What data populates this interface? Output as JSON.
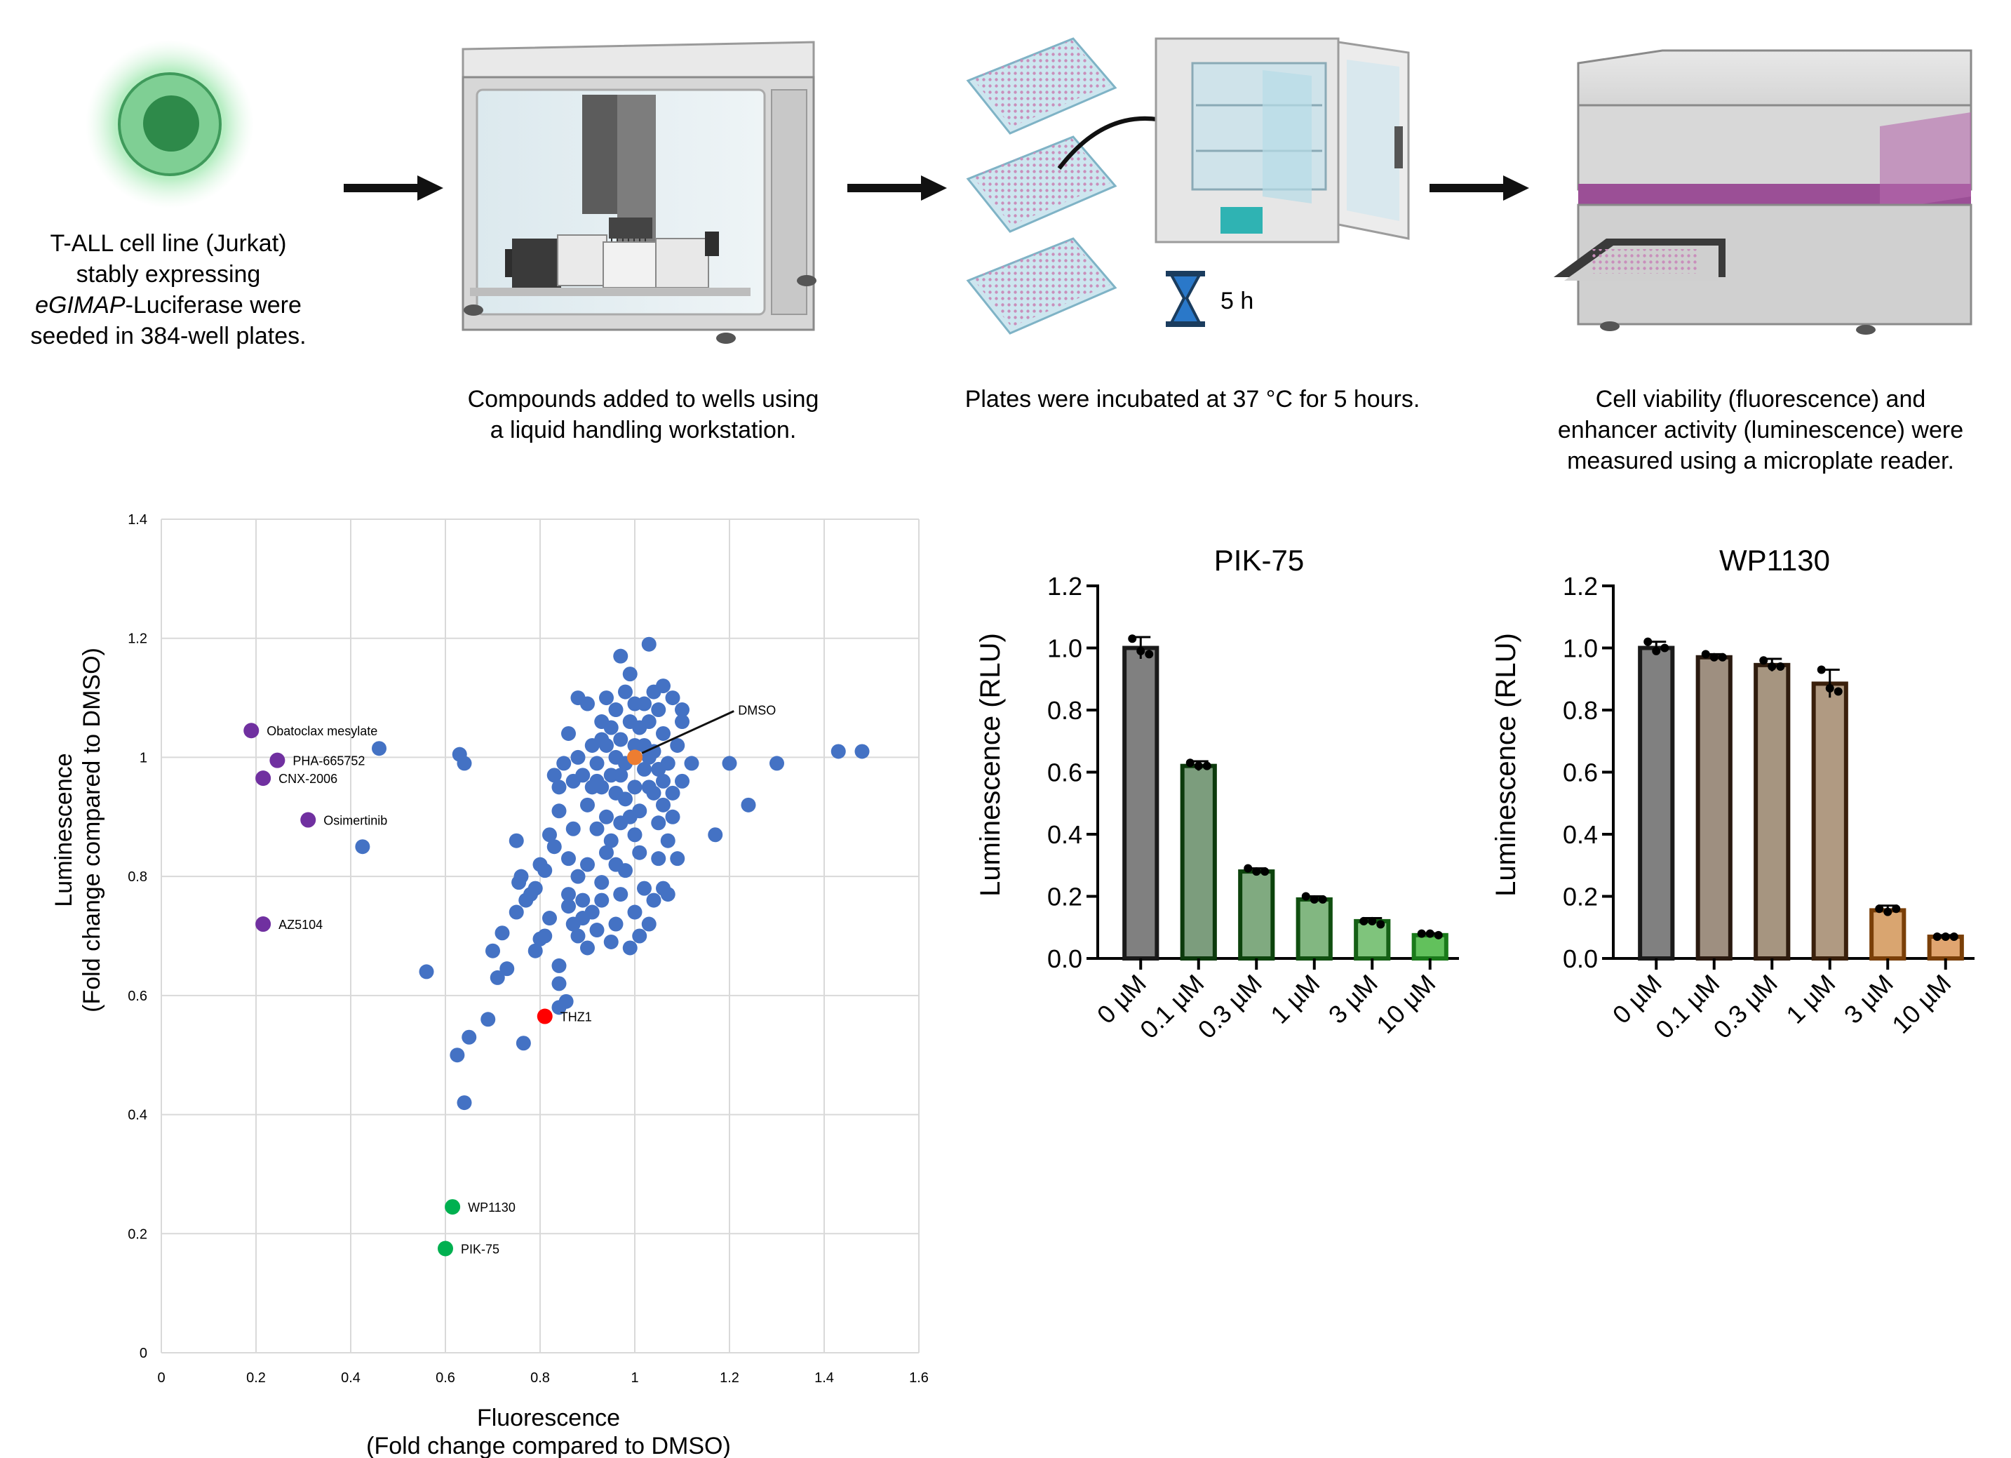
{
  "workflow": {
    "step1": {
      "line1": "T-ALL cell line (Jurkat)",
      "line2": "stably expressing",
      "line3_italic": "eGIMAP",
      "line3_rest": "-Luciferase were",
      "line4": "seeded in 384-well plates."
    },
    "step2": {
      "line1": "Compounds added to wells using",
      "line2": "a liquid handling workstation."
    },
    "step3": {
      "line1": "Plates were incubated at 37 °C for 5 hours.",
      "timer_label": "5 h"
    },
    "step4": {
      "line1": "Cell viability (fluorescence) and",
      "line2": "enhancer activity (luminescence) were",
      "line3": "measured using a microplate reader."
    }
  },
  "chart_data": [
    {
      "type": "scatter",
      "xlabel": "Fluorescence",
      "xlabel2": "(Fold change compared to DMSO)",
      "ylabel": "Luminescence",
      "ylabel2": "(Fold change compared to DMSO)",
      "xlim": [
        0,
        1.6
      ],
      "ylim": [
        0,
        1.4
      ],
      "xticks": [
        "0",
        "0.2",
        "0.4",
        "0.6",
        "0.8",
        "1",
        "1.2",
        "1.4",
        "1.6"
      ],
      "yticks": [
        "0",
        "0.2",
        "0.4",
        "0.6",
        "0.8",
        "1",
        "1.2",
        "1.4"
      ],
      "grid": true,
      "colors": {
        "screen": "#4472C4",
        "purple": "#7030A0",
        "green": "#00B050",
        "red": "#FF0000",
        "orange": "#ED7D31"
      },
      "labeled_points": [
        {
          "label": "Obatoclax mesylate",
          "x": 0.19,
          "y": 1.045,
          "color": "purple"
        },
        {
          "label": "PHA-665752",
          "x": 0.245,
          "y": 0.995,
          "color": "purple"
        },
        {
          "label": "CNX-2006",
          "x": 0.215,
          "y": 0.965,
          "color": "purple"
        },
        {
          "label": "Osimertinib",
          "x": 0.31,
          "y": 0.895,
          "color": "purple"
        },
        {
          "label": "AZ5104",
          "x": 0.215,
          "y": 0.72,
          "color": "purple"
        },
        {
          "label": "WP1130",
          "x": 0.615,
          "y": 0.245,
          "color": "green"
        },
        {
          "label": "PIK-75",
          "x": 0.6,
          "y": 0.175,
          "color": "green"
        },
        {
          "label": "THZ1",
          "x": 0.81,
          "y": 0.565,
          "color": "red"
        },
        {
          "label": "DMSO",
          "x": 1.0,
          "y": 1.0,
          "color": "orange",
          "label_x": 1.23,
          "label_y": 1.08
        }
      ],
      "screen_points": [
        [
          0.46,
          1.015
        ],
        [
          0.425,
          0.85
        ],
        [
          0.63,
          1.005
        ],
        [
          0.64,
          0.99
        ],
        [
          0.56,
          0.64
        ],
        [
          0.7,
          0.675
        ],
        [
          0.71,
          0.63
        ],
        [
          0.72,
          0.705
        ],
        [
          0.73,
          0.645
        ],
        [
          0.75,
          0.74
        ],
        [
          0.755,
          0.79
        ],
        [
          0.75,
          0.86
        ],
        [
          0.76,
          0.8
        ],
        [
          0.78,
          0.77
        ],
        [
          0.79,
          0.675
        ],
        [
          0.8,
          0.695
        ],
        [
          0.8,
          0.82
        ],
        [
          0.81,
          0.7
        ],
        [
          0.82,
          0.73
        ],
        [
          0.83,
          0.85
        ],
        [
          0.84,
          0.62
        ],
        [
          0.84,
          0.65
        ],
        [
          0.84,
          0.58
        ],
        [
          0.855,
          0.59
        ],
        [
          0.86,
          0.77
        ],
        [
          0.87,
          0.72
        ],
        [
          0.88,
          0.8
        ],
        [
          0.88,
          0.7
        ],
        [
          0.89,
          0.76
        ],
        [
          0.9,
          0.68
        ],
        [
          0.9,
          0.82
        ],
        [
          0.91,
          0.74
        ],
        [
          0.92,
          0.71
        ],
        [
          0.93,
          0.79
        ],
        [
          0.94,
          0.84
        ],
        [
          0.95,
          0.69
        ],
        [
          0.96,
          0.72
        ],
        [
          0.97,
          0.77
        ],
        [
          0.98,
          0.81
        ],
        [
          0.99,
          0.68
        ],
        [
          1.0,
          0.74
        ],
        [
          1.01,
          0.7
        ],
        [
          1.02,
          0.78
        ],
        [
          1.03,
          0.72
        ],
        [
          1.04,
          0.76
        ],
        [
          1.05,
          0.83
        ],
        [
          1.06,
          0.78
        ],
        [
          1.07,
          0.77
        ],
        [
          1.09,
          0.83
        ],
        [
          1.1,
          0.96
        ],
        [
          1.12,
          0.99
        ],
        [
          1.17,
          0.87
        ],
        [
          1.2,
          0.99
        ],
        [
          1.24,
          0.92
        ],
        [
          1.3,
          0.99
        ],
        [
          1.43,
          1.01
        ],
        [
          1.48,
          1.01
        ],
        [
          1.03,
          1.19
        ],
        [
          0.97,
          1.17
        ],
        [
          0.99,
          1.14
        ],
        [
          0.88,
          1.1
        ],
        [
          0.86,
          1.04
        ],
        [
          0.84,
          0.95
        ],
        [
          0.84,
          0.91
        ],
        [
          0.83,
          0.97
        ],
        [
          0.85,
          0.99
        ],
        [
          0.87,
          0.96
        ],
        [
          0.9,
          0.92
        ],
        [
          0.92,
          0.88
        ],
        [
          0.94,
          0.9
        ],
        [
          0.95,
          0.86
        ],
        [
          0.96,
          0.94
        ],
        [
          0.97,
          0.89
        ],
        [
          0.98,
          0.93
        ],
        [
          1.0,
          0.87
        ],
        [
          1.01,
          0.91
        ],
        [
          1.03,
          0.95
        ],
        [
          1.05,
          0.89
        ],
        [
          1.06,
          0.92
        ],
        [
          1.07,
          0.86
        ],
        [
          1.08,
          0.9
        ],
        [
          1.09,
          1.02
        ],
        [
          1.1,
          1.06
        ],
        [
          1.1,
          1.08
        ],
        [
          1.08,
          1.1
        ],
        [
          1.06,
          1.12
        ],
        [
          1.05,
          1.08
        ],
        [
          0.9,
          1.09
        ],
        [
          0.91,
          1.02
        ],
        [
          0.93,
          1.06
        ],
        [
          0.95,
          1.05
        ],
        [
          0.96,
          1.0
        ],
        [
          0.97,
          1.03
        ],
        [
          0.98,
          0.99
        ],
        [
          1.01,
          1.05
        ],
        [
          1.02,
          1.02
        ],
        [
          1.03,
          1.06
        ],
        [
          1.04,
          1.01
        ],
        [
          1.05,
          0.98
        ],
        [
          1.06,
          1.04
        ],
        [
          1.07,
          0.99
        ],
        [
          0.88,
          1.0
        ],
        [
          0.89,
          0.97
        ],
        [
          0.92,
          0.99
        ],
        [
          0.93,
          0.95
        ],
        [
          0.94,
          1.02
        ],
        [
          0.99,
          1.06
        ],
        [
          1.0,
          1.09
        ],
        [
          1.02,
          1.09
        ],
        [
          1.04,
          1.11
        ],
        [
          0.96,
          1.08
        ],
        [
          0.94,
          1.1
        ],
        [
          0.98,
          1.11
        ],
        [
          0.87,
          0.88
        ],
        [
          0.86,
          0.83
        ],
        [
          0.82,
          0.87
        ],
        [
          0.81,
          0.81
        ],
        [
          0.79,
          0.78
        ],
        [
          0.77,
          0.76
        ],
        [
          0.65,
          0.53
        ],
        [
          0.625,
          0.5
        ],
        [
          0.64,
          0.42
        ],
        [
          0.765,
          0.52
        ],
        [
          0.69,
          0.56
        ],
        [
          0.92,
          0.96
        ],
        [
          0.95,
          0.97
        ],
        [
          1.0,
          0.95
        ],
        [
          1.02,
          0.98
        ],
        [
          1.04,
          0.94
        ],
        [
          1.06,
          0.96
        ],
        [
          1.08,
          0.94
        ],
        [
          0.91,
          0.95
        ],
        [
          0.93,
          1.03
        ],
        [
          0.97,
          0.97
        ],
        [
          1.0,
          1.02
        ],
        [
          1.03,
          1.0
        ],
        [
          0.99,
          0.9
        ],
        [
          1.01,
          0.84
        ],
        [
          0.96,
          0.82
        ],
        [
          0.93,
          0.76
        ],
        [
          0.89,
          0.73
        ],
        [
          0.86,
          0.75
        ]
      ]
    },
    {
      "type": "bar",
      "title": "PIK-75",
      "ylabel": "Luminescence (RLU)",
      "ylim": [
        0,
        1.2
      ],
      "yticks": [
        "0.0",
        "0.2",
        "0.4",
        "0.6",
        "0.8",
        "1.0",
        "1.2"
      ],
      "categories": [
        "0 µM",
        "0.1 µM",
        "0.3 µM",
        "1 µM",
        "3 µM",
        "10 µM"
      ],
      "values": [
        1.0,
        0.62,
        0.28,
        0.19,
        0.12,
        0.075
      ],
      "errors": [
        0.035,
        0.015,
        0.01,
        0.01,
        0.01,
        0.006
      ],
      "replicates": [
        [
          1.03,
          0.99,
          0.98
        ],
        [
          0.63,
          0.62,
          0.62
        ],
        [
          0.29,
          0.28,
          0.28
        ],
        [
          0.2,
          0.19,
          0.19
        ],
        [
          0.12,
          0.12,
          0.11
        ],
        [
          0.08,
          0.08,
          0.075
        ]
      ],
      "fill_colors": [
        "#808080",
        "#7c9d7d",
        "#80aa80",
        "#82b781",
        "#7fc47c",
        "#62c15c"
      ],
      "edge_colors": [
        "#1a1a1a",
        "#0c3a0c",
        "#0c430c",
        "#104f10",
        "#156015",
        "#1a7a1a"
      ]
    },
    {
      "type": "bar",
      "title": "WP1130",
      "ylabel": "Luminescence (RLU)",
      "ylim": [
        0,
        1.2
      ],
      "yticks": [
        "0.0",
        "0.2",
        "0.4",
        "0.6",
        "0.8",
        "1.0",
        "1.2"
      ],
      "categories": [
        "0 µM",
        "0.1 µM",
        "0.3 µM",
        "1 µM",
        "3 µM",
        "10 µM"
      ],
      "values": [
        1.0,
        0.97,
        0.945,
        0.885,
        0.155,
        0.07
      ],
      "errors": [
        0.02,
        0.01,
        0.02,
        0.045,
        0.015,
        0.005
      ],
      "replicates": [
        [
          1.02,
          0.99,
          1.0
        ],
        [
          0.98,
          0.97,
          0.97
        ],
        [
          0.96,
          0.94,
          0.94
        ],
        [
          0.93,
          0.87,
          0.86
        ],
        [
          0.16,
          0.15,
          0.16
        ],
        [
          0.07,
          0.07,
          0.07
        ]
      ],
      "fill_colors": [
        "#808080",
        "#9e8f80",
        "#a69580",
        "#b09a82",
        "#d9a570",
        "#e0a570"
      ],
      "edge_colors": [
        "#1a1a1a",
        "#2a1a10",
        "#2f1c0e",
        "#3a200c",
        "#7a3f08",
        "#7a3f08"
      ]
    }
  ]
}
